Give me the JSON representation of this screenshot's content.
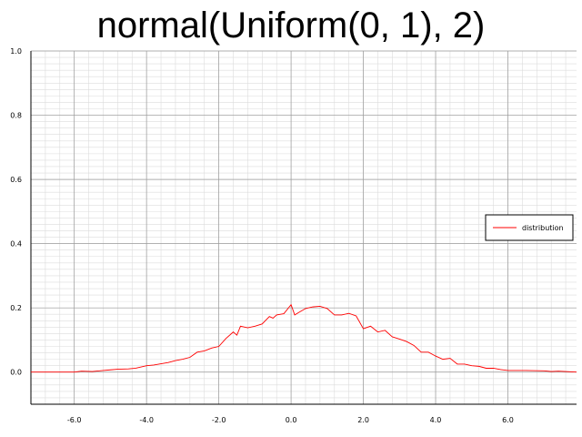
{
  "chart_data": {
    "type": "line",
    "title": "normal(Uniform(0, 1), 2)",
    "xlabel": "",
    "ylabel": "",
    "xlim": [
      -7.2,
      7.9
    ],
    "ylim": [
      -0.1,
      1.0
    ],
    "x_ticks": [
      -6.0,
      -4.0,
      -2.0,
      0.0,
      2.0,
      4.0,
      6.0
    ],
    "x_tick_labels": [
      "-6.0",
      "-4.0",
      "-2.0",
      "0.0",
      "2.0",
      "4.0",
      "6.0"
    ],
    "y_ticks": [
      0.0,
      0.2,
      0.4,
      0.6,
      0.8,
      1.0
    ],
    "y_tick_labels": [
      "0.0",
      "0.2",
      "0.4",
      "0.6",
      "0.8",
      "1.0"
    ],
    "grid": true,
    "legend": {
      "position": "right",
      "entries": [
        "distribution"
      ]
    },
    "series": [
      {
        "name": "distribution",
        "color": "#ff0000",
        "x": [
          -7.2,
          -6.0,
          -5.8,
          -5.5,
          -5.2,
          -5.0,
          -4.8,
          -4.5,
          -4.3,
          -4.0,
          -3.8,
          -3.6,
          -3.4,
          -3.2,
          -3.0,
          -2.8,
          -2.6,
          -2.4,
          -2.2,
          -2.0,
          -1.8,
          -1.6,
          -1.5,
          -1.4,
          -1.2,
          -1.0,
          -0.8,
          -0.6,
          -0.5,
          -0.4,
          -0.2,
          0.0,
          0.1,
          0.2,
          0.4,
          0.6,
          0.8,
          1.0,
          1.2,
          1.4,
          1.6,
          1.8,
          2.0,
          2.2,
          2.4,
          2.6,
          2.8,
          3.0,
          3.2,
          3.4,
          3.6,
          3.8,
          4.0,
          4.2,
          4.4,
          4.6,
          4.8,
          5.0,
          5.2,
          5.4,
          5.6,
          5.8,
          6.0,
          6.5,
          7.0,
          7.2,
          7.4,
          7.9
        ],
        "y": [
          0.0,
          0.0,
          0.003,
          0.002,
          0.005,
          0.007,
          0.009,
          0.01,
          0.012,
          0.02,
          0.022,
          0.026,
          0.03,
          0.036,
          0.04,
          0.046,
          0.062,
          0.066,
          0.075,
          0.08,
          0.105,
          0.125,
          0.115,
          0.143,
          0.138,
          0.143,
          0.15,
          0.173,
          0.168,
          0.178,
          0.182,
          0.21,
          0.178,
          0.185,
          0.198,
          0.203,
          0.205,
          0.198,
          0.178,
          0.178,
          0.183,
          0.175,
          0.135,
          0.143,
          0.125,
          0.13,
          0.11,
          0.103,
          0.095,
          0.083,
          0.062,
          0.062,
          0.05,
          0.04,
          0.043,
          0.025,
          0.025,
          0.02,
          0.018,
          0.012,
          0.012,
          0.008,
          0.005,
          0.005,
          0.004,
          0.002,
          0.003,
          0.0
        ]
      }
    ]
  }
}
